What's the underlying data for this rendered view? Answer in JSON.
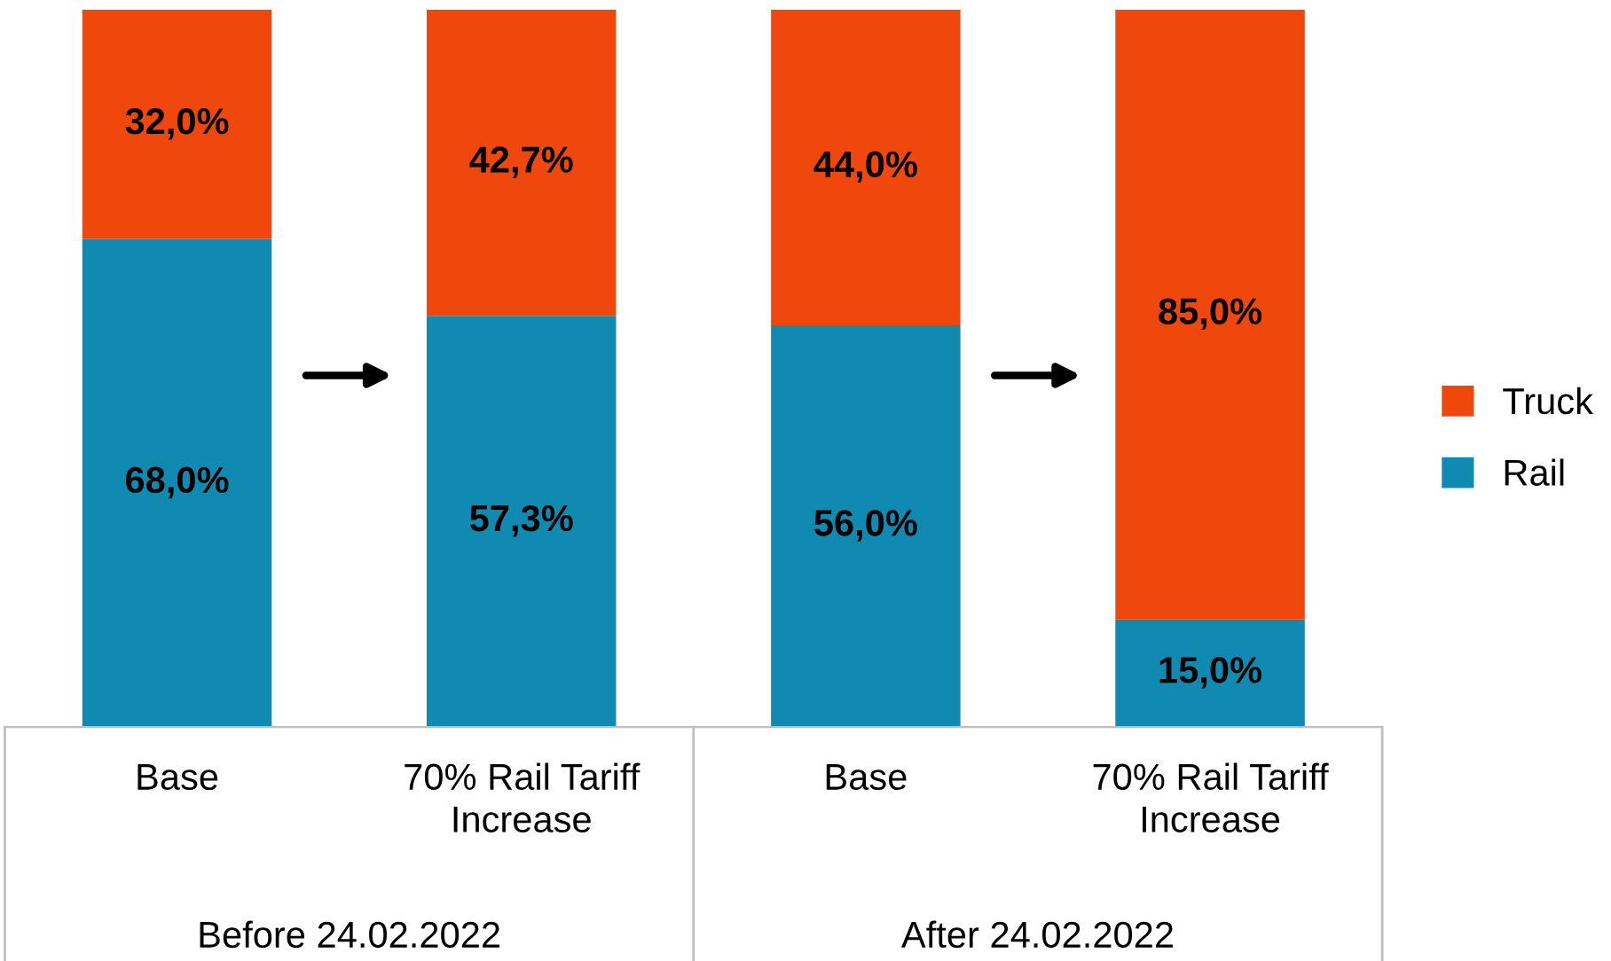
{
  "chart_data": {
    "type": "bar",
    "stacked": true,
    "categories": [
      "Base",
      "70% Rail Tariff Increase",
      "Base",
      "70% Rail Tariff Increase"
    ],
    "series": [
      {
        "name": "Rail",
        "color": "#118ab2",
        "values": [
          68.0,
          57.3,
          56.0,
          15.0
        ],
        "value_labels": [
          "68,0%",
          "57,3%",
          "56,0%",
          "15,0%"
        ]
      },
      {
        "name": "Truck",
        "color": "#f0470c",
        "values": [
          32.0,
          42.7,
          44.0,
          85.0
        ],
        "value_labels": [
          "32,0%",
          "42,7%",
          "44,0%",
          "85,0%"
        ]
      }
    ],
    "ylim": [
      0,
      100
    ],
    "tick_labels": "x",
    "legend": "right",
    "annotations": [
      "Before 24.02.2022",
      "After 24.02.2022"
    ]
  }
}
